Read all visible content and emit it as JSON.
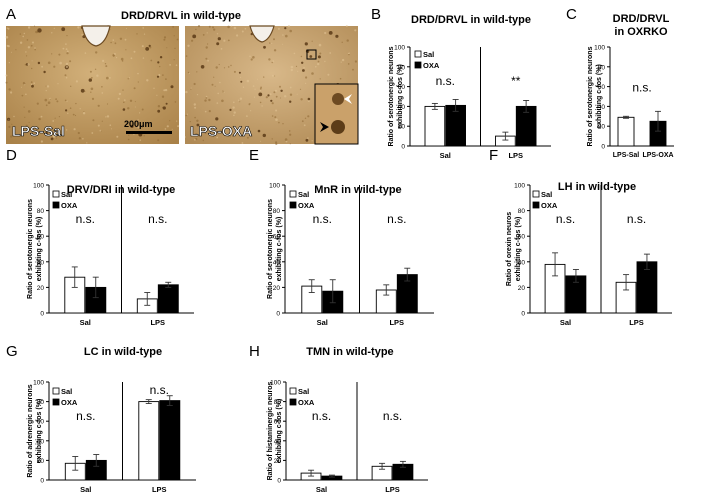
{
  "figure": {
    "panel_A": {
      "letter": "A",
      "title": "DRD/DRVL in wild-type",
      "left_label": "LPS-Sal",
      "right_label": "LPS-OXA",
      "scale_bar": "200μm"
    }
  },
  "chart_data": [
    {
      "id": "B",
      "letter": "B",
      "type": "bar",
      "title": "DRD/DRVL in wild-type",
      "ylabel_lines": [
        "Ratio of serotonergic neurons",
        "exhibiting c-fos (%)"
      ],
      "ylim": [
        0,
        100
      ],
      "yticks": [
        0,
        20,
        40,
        60,
        80,
        100
      ],
      "groups": [
        {
          "label": "Sal",
          "significance": "n.s."
        },
        {
          "label": "LPS",
          "significance": "**"
        }
      ],
      "series": [
        {
          "name": "Sal",
          "fill": "#ffffff",
          "values": [
            40,
            10
          ],
          "errors": [
            3,
            4
          ]
        },
        {
          "name": "OXA",
          "fill": "#000000",
          "values": [
            41,
            40
          ],
          "errors": [
            6,
            6
          ]
        }
      ],
      "legend": "top-left"
    },
    {
      "id": "C",
      "letter": "C",
      "type": "bar",
      "title_lines": [
        "DRD/DRVL",
        "in OXRKO"
      ],
      "ylabel_lines": [
        "Ratio of serotonergic neurons",
        "exhibiting c-fos (%)"
      ],
      "ylim": [
        0,
        100
      ],
      "yticks": [
        0,
        20,
        40,
        60,
        80,
        100
      ],
      "categories": [
        "LPS-Sal",
        "LPS-OXA"
      ],
      "values": [
        29,
        25
      ],
      "errors": [
        1,
        10
      ],
      "fills": [
        "#ffffff",
        "#000000"
      ],
      "significance": "n.s."
    },
    {
      "id": "D",
      "letter": "D",
      "type": "bar",
      "title": "DRV/DRI in wild-type",
      "ylabel_lines": [
        "Ratio of serotonergic neurons",
        "exhibiting c-fos (%)"
      ],
      "ylim": [
        0,
        100
      ],
      "yticks": [
        0,
        20,
        40,
        60,
        80,
        100
      ],
      "groups": [
        {
          "label": "Sal",
          "significance": "n.s."
        },
        {
          "label": "LPS",
          "significance": "n.s."
        }
      ],
      "series": [
        {
          "name": "Sal",
          "fill": "#ffffff",
          "values": [
            28,
            11
          ],
          "errors": [
            8,
            5
          ]
        },
        {
          "name": "OXA",
          "fill": "#000000",
          "values": [
            20,
            22
          ],
          "errors": [
            8,
            2
          ]
        }
      ],
      "legend": "top-left"
    },
    {
      "id": "E",
      "letter": "E",
      "type": "bar",
      "title": "MnR in wild-type",
      "ylabel_lines": [
        "Ratio of serotonergic neurons",
        "exhibiting c-fos (%)"
      ],
      "ylim": [
        0,
        100
      ],
      "yticks": [
        0,
        20,
        40,
        60,
        80,
        100
      ],
      "groups": [
        {
          "label": "Sal",
          "significance": "n.s."
        },
        {
          "label": "LPS",
          "significance": "n.s."
        }
      ],
      "series": [
        {
          "name": "Sal",
          "fill": "#ffffff",
          "values": [
            21,
            18
          ],
          "errors": [
            5,
            4
          ]
        },
        {
          "name": "OXA",
          "fill": "#000000",
          "values": [
            17,
            30
          ],
          "errors": [
            9,
            5
          ]
        }
      ],
      "legend": "top-left"
    },
    {
      "id": "F",
      "letter": "F",
      "type": "bar",
      "title": "LH in wild-type",
      "ylabel_lines": [
        "Ratio of orexin neuros",
        "exhibiting c-fos (%)"
      ],
      "ylim": [
        0,
        100
      ],
      "yticks": [
        0,
        20,
        40,
        60,
        80,
        100
      ],
      "groups": [
        {
          "label": "Sal",
          "significance": "n.s."
        },
        {
          "label": "LPS",
          "significance": "n.s."
        }
      ],
      "series": [
        {
          "name": "Sal",
          "fill": "#ffffff",
          "values": [
            38,
            24
          ],
          "errors": [
            9,
            6
          ]
        },
        {
          "name": "OXA",
          "fill": "#000000",
          "values": [
            29,
            40
          ],
          "errors": [
            5,
            6
          ]
        }
      ],
      "legend": "top-left"
    },
    {
      "id": "G",
      "letter": "G",
      "type": "bar",
      "title": "LC in wild-type",
      "ylabel_lines": [
        "Ratio of adrenergic neurons",
        "exhibiting c-fos (%)"
      ],
      "ylim": [
        0,
        100
      ],
      "yticks": [
        0,
        20,
        40,
        60,
        80,
        100
      ],
      "groups": [
        {
          "label": "Sal",
          "significance": "n.s."
        },
        {
          "label": "LPS",
          "significance": "n.s."
        }
      ],
      "series": [
        {
          "name": "Sal",
          "fill": "#ffffff",
          "values": [
            17,
            80
          ],
          "errors": [
            7,
            2
          ]
        },
        {
          "name": "OXA",
          "fill": "#000000",
          "values": [
            20,
            81
          ],
          "errors": [
            6,
            5
          ]
        }
      ],
      "legend": "top-left"
    },
    {
      "id": "H",
      "letter": "H",
      "type": "bar",
      "title": "TMN in wild-type",
      "ylabel_lines": [
        "Ratio of histaminergic neuros",
        "exhibiting c-fos (%)"
      ],
      "ylim": [
        0,
        100
      ],
      "yticks": [
        0,
        20,
        40,
        60,
        80,
        100
      ],
      "groups": [
        {
          "label": "Sal",
          "significance": "n.s."
        },
        {
          "label": "LPS",
          "significance": "n.s."
        }
      ],
      "series": [
        {
          "name": "Sal",
          "fill": "#ffffff",
          "values": [
            7,
            14
          ],
          "errors": [
            3,
            3
          ]
        },
        {
          "name": "OXA",
          "fill": "#000000",
          "values": [
            4,
            16
          ],
          "errors": [
            1,
            3
          ]
        }
      ],
      "legend": "top-left"
    }
  ]
}
